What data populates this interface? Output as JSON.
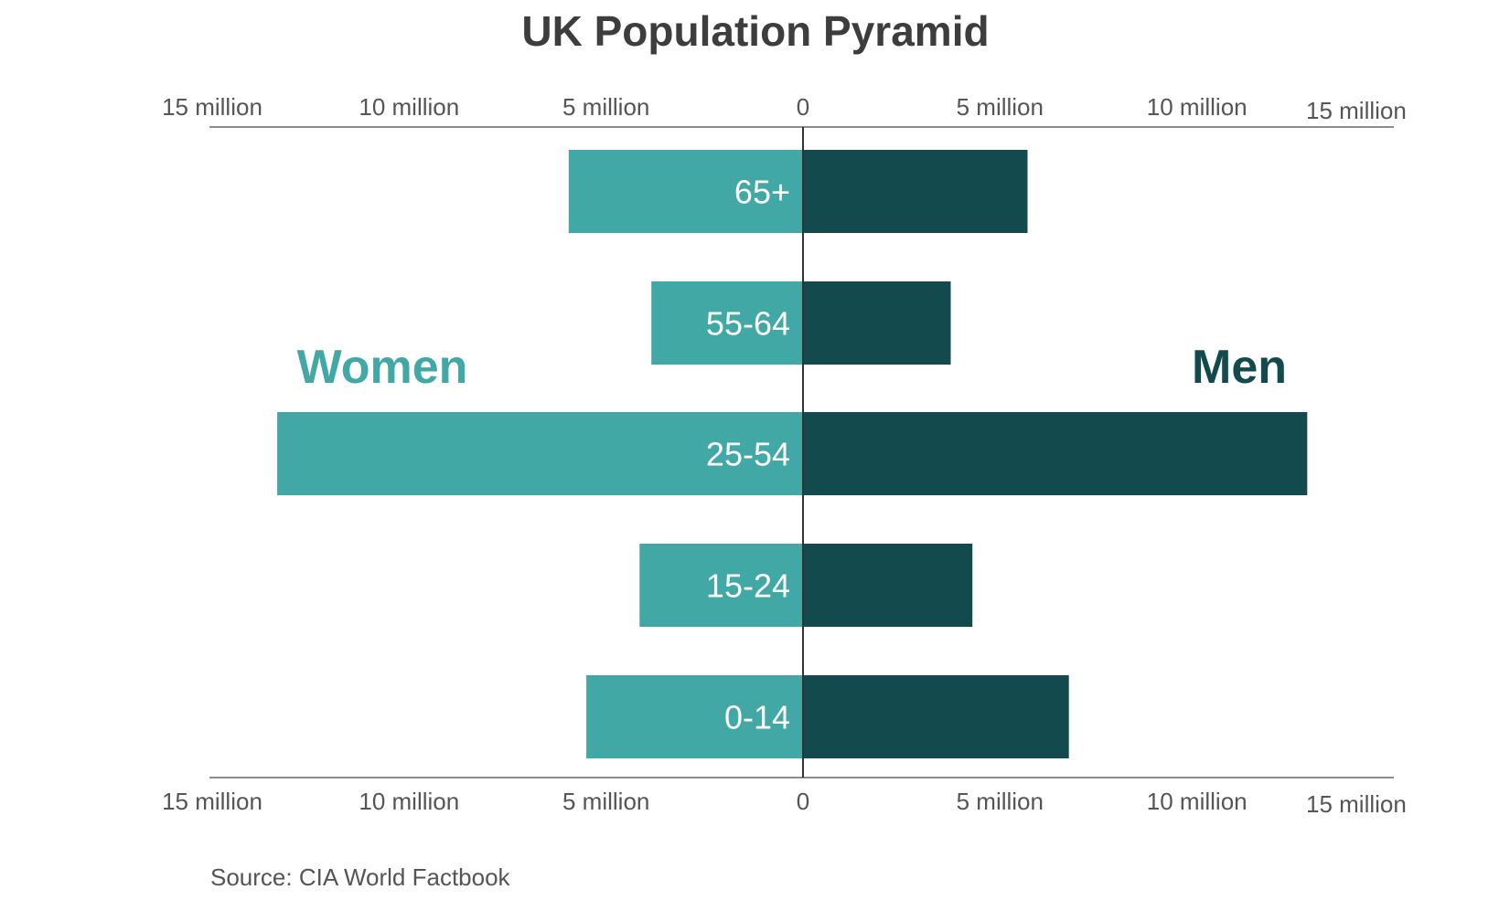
{
  "chart_data": {
    "type": "bar",
    "orientation": "horizontal-diverging",
    "title": "UK Population Pyramid",
    "categories": [
      "65+",
      "55-64",
      "25-54",
      "15-24",
      "0-14"
    ],
    "series": [
      {
        "name": "Women",
        "values": [
          5.95,
          3.85,
          13.35,
          4.15,
          5.5
        ],
        "color": "#41a8a6"
      },
      {
        "name": "Men",
        "values": [
          5.7,
          3.75,
          12.8,
          4.3,
          6.75
        ],
        "color": "#124a4d"
      }
    ],
    "xlim": [
      0,
      15
    ],
    "axis_ticks": [
      {
        "value": 15,
        "side": "left",
        "label": "15 million"
      },
      {
        "value": 10,
        "side": "left",
        "label": "10 million"
      },
      {
        "value": 5,
        "side": "left",
        "label": "5 million"
      },
      {
        "value": 0,
        "side": "center",
        "label": "0"
      },
      {
        "value": 5,
        "side": "right",
        "label": "5 million"
      },
      {
        "value": 10,
        "side": "right",
        "label": "10 million"
      },
      {
        "value": 15,
        "side": "right",
        "label": "15 million"
      }
    ],
    "source": "Source: CIA World Factbook",
    "grid": false,
    "legend_placement": "inline"
  }
}
